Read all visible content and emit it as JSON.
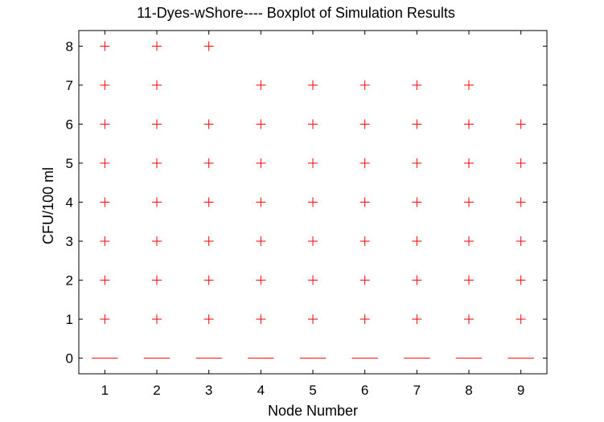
{
  "chart_data": {
    "type": "box",
    "title": "11-Dyes-wShore---- Boxplot of Simulation Results",
    "xlabel": "Node Number",
    "ylabel": "CFU/100 ml",
    "xlim": [
      0.5,
      9.5
    ],
    "ylim": [
      -0.4,
      8.4
    ],
    "x_ticks": [
      "1",
      "2",
      "3",
      "4",
      "5",
      "6",
      "7",
      "8",
      "9"
    ],
    "y_ticks": [
      "0",
      "1",
      "2",
      "3",
      "4",
      "5",
      "6",
      "7",
      "8"
    ],
    "colors": {
      "median": "#ff0000",
      "outlier": "#ff0000",
      "axes": "#000000"
    },
    "outlier_marker": "plus",
    "grid": false,
    "nodes": [
      {
        "x": 1,
        "median": 0,
        "outliers": [
          1,
          2,
          3,
          4,
          5,
          6,
          7,
          8
        ]
      },
      {
        "x": 2,
        "median": 0,
        "outliers": [
          1,
          2,
          3,
          4,
          5,
          6,
          7,
          8
        ]
      },
      {
        "x": 3,
        "median": 0,
        "outliers": [
          1,
          2,
          3,
          4,
          5,
          6,
          8
        ]
      },
      {
        "x": 4,
        "median": 0,
        "outliers": [
          1,
          2,
          3,
          4,
          5,
          6,
          7
        ]
      },
      {
        "x": 5,
        "median": 0,
        "outliers": [
          1,
          2,
          3,
          4,
          5,
          6,
          7
        ]
      },
      {
        "x": 6,
        "median": 0,
        "outliers": [
          1,
          2,
          3,
          4,
          5,
          6,
          7
        ]
      },
      {
        "x": 7,
        "median": 0,
        "outliers": [
          1,
          2,
          3,
          4,
          5,
          6,
          7
        ]
      },
      {
        "x": 8,
        "median": 0,
        "outliers": [
          1,
          2,
          3,
          4,
          5,
          6,
          7
        ]
      },
      {
        "x": 9,
        "median": 0,
        "outliers": [
          1,
          2,
          3,
          4,
          5,
          6
        ]
      }
    ]
  }
}
